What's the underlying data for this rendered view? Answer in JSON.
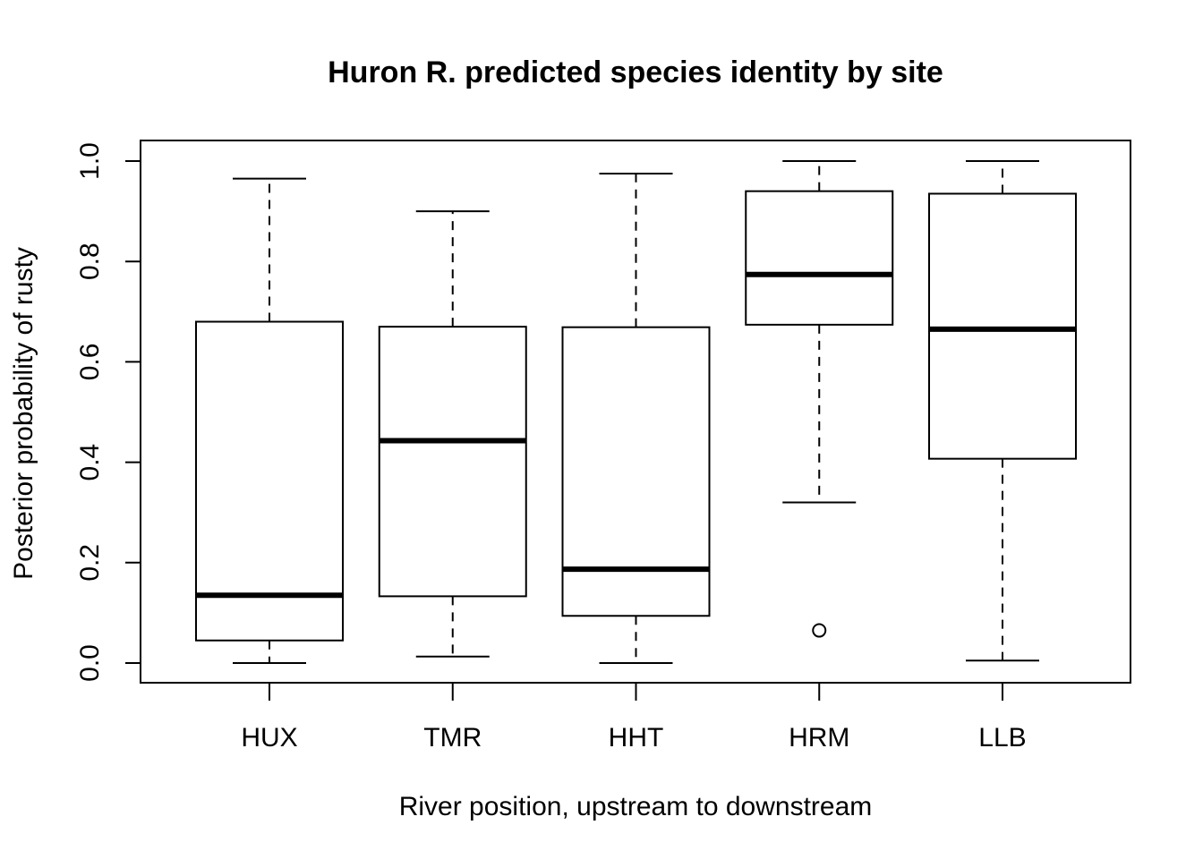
{
  "chart_data": {
    "type": "boxplot",
    "title": "Huron R. predicted species identity by site",
    "xlabel": "River position, upstream to downstream",
    "ylabel": "Posterior probability of rusty",
    "ylim": [
      0.0,
      1.0
    ],
    "yticks": [
      "0.0",
      "0.2",
      "0.4",
      "0.6",
      "0.8",
      "1.0"
    ],
    "grid": false,
    "legend": "none",
    "categories": [
      "HUX",
      "TMR",
      "HHT",
      "HRM",
      "LLB"
    ],
    "boxes": [
      {
        "category": "HUX",
        "whisker_low": 0.0,
        "q1": 0.045,
        "median": 0.135,
        "q3": 0.68,
        "whisker_high": 0.965,
        "outliers": []
      },
      {
        "category": "TMR",
        "whisker_low": 0.013,
        "q1": 0.133,
        "median": 0.443,
        "q3": 0.67,
        "whisker_high": 0.9,
        "outliers": []
      },
      {
        "category": "HHT",
        "whisker_low": 0.0,
        "q1": 0.094,
        "median": 0.187,
        "q3": 0.669,
        "whisker_high": 0.975,
        "outliers": []
      },
      {
        "category": "HRM",
        "whisker_low": 0.32,
        "q1": 0.674,
        "median": 0.774,
        "q3": 0.94,
        "whisker_high": 1.0,
        "outliers": [
          0.065
        ]
      },
      {
        "category": "LLB",
        "whisker_low": 0.005,
        "q1": 0.407,
        "median": 0.665,
        "q3": 0.935,
        "whisker_high": 1.0,
        "outliers": []
      }
    ]
  }
}
